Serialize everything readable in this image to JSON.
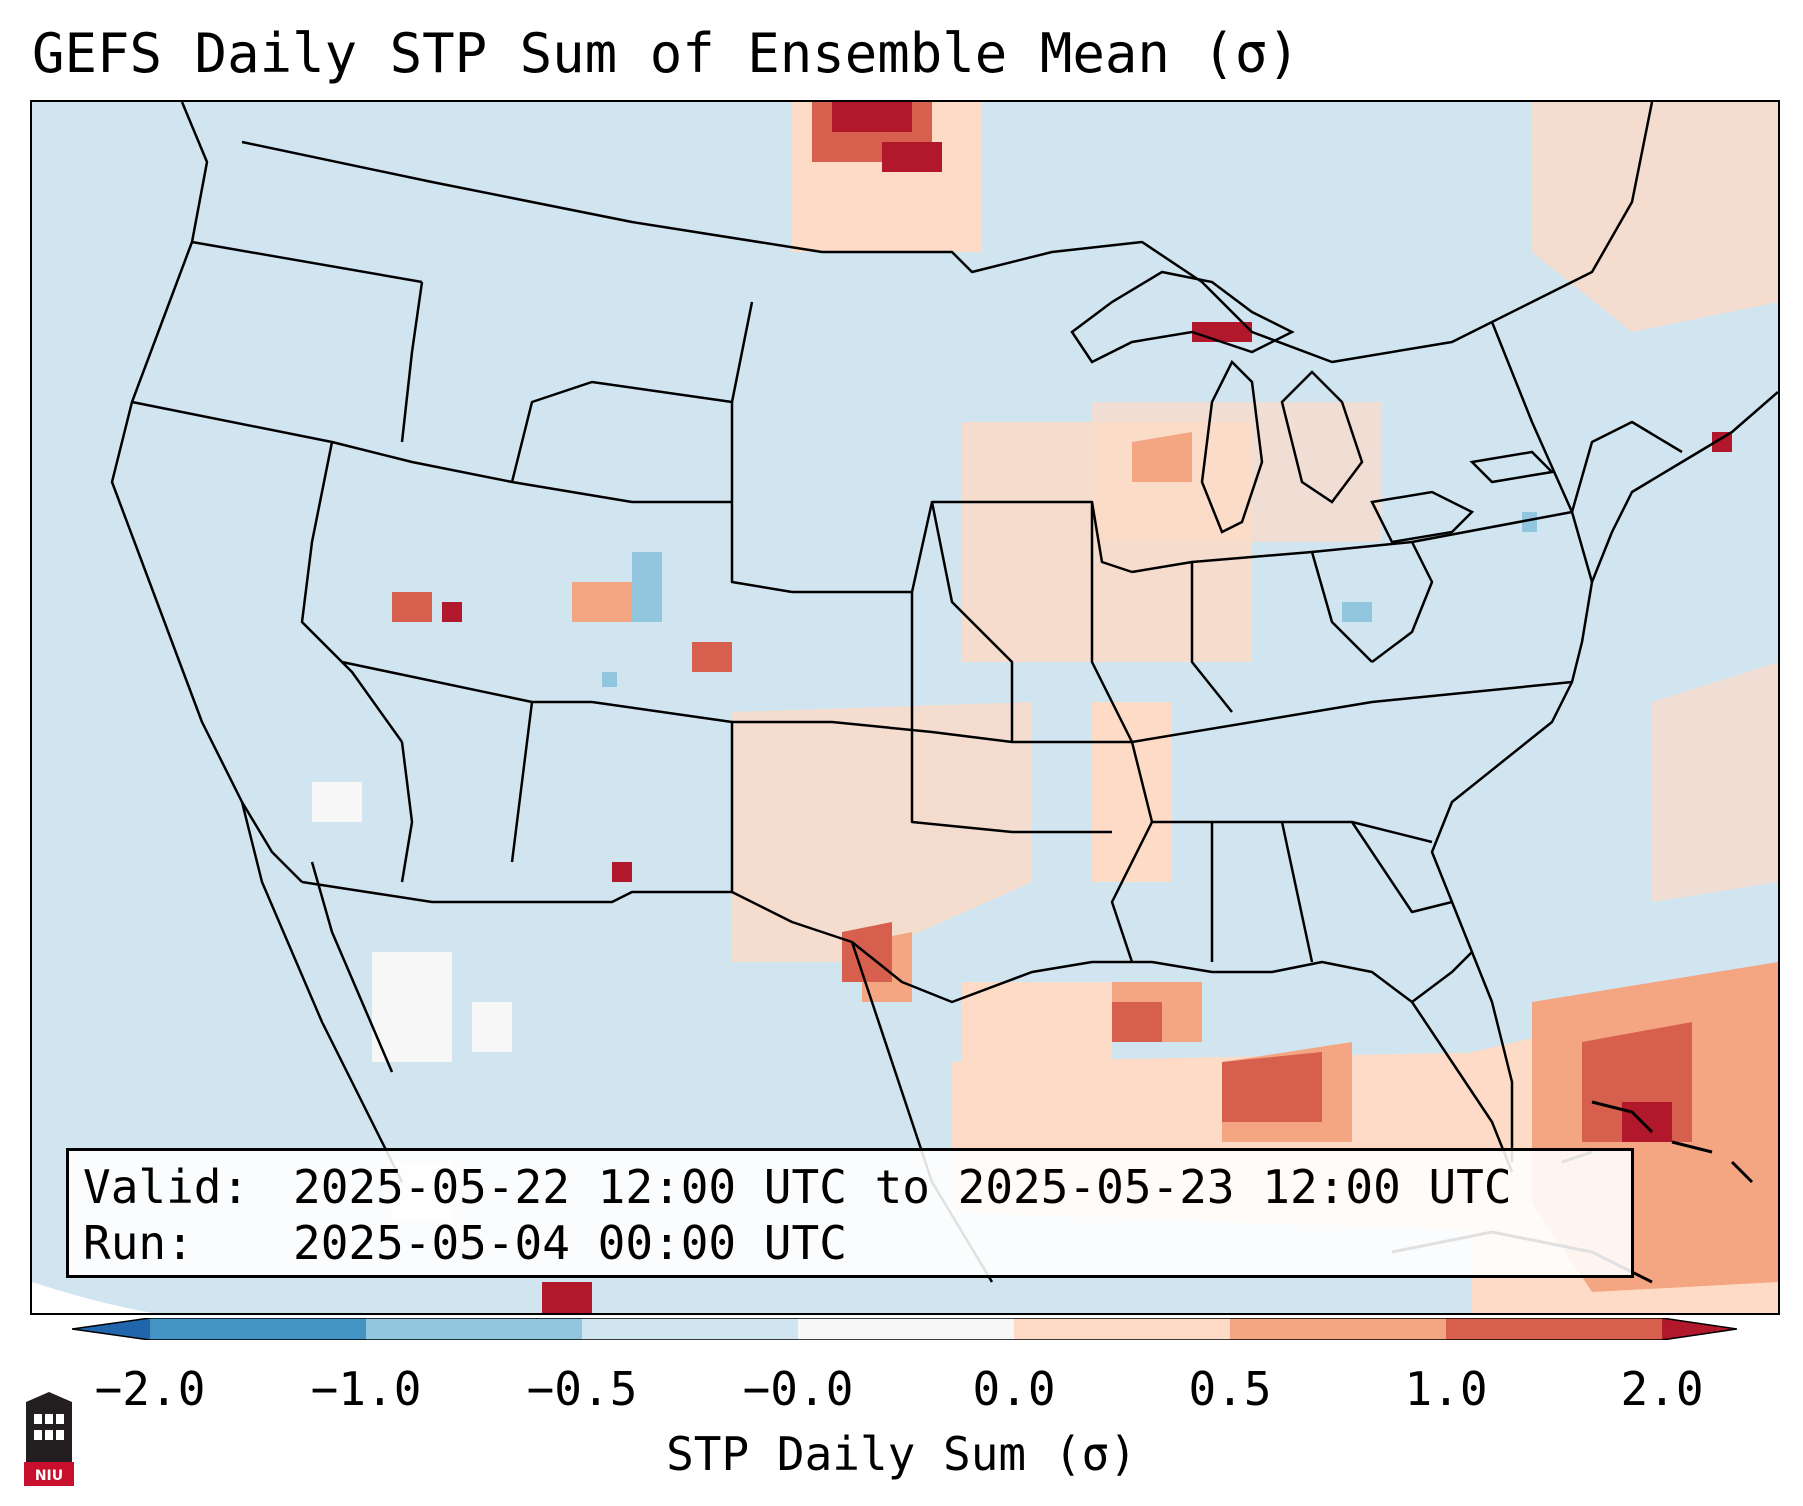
{
  "title": "GEFS Daily STP Sum of Ensemble Mean (σ)",
  "info": {
    "valid_label": "Valid:",
    "valid_value": "2025-05-22 12:00 UTC to 2025-05-23 12:00 UTC",
    "run_label": "Run:",
    "run_value": "2025-05-04 00:00 UTC"
  },
  "colorbar": {
    "label": "STP Daily Sum (σ)",
    "ticks": [
      "−2.0",
      "−1.0",
      "−0.5",
      "−0.0",
      "0.0",
      "0.5",
      "1.0",
      "2.0"
    ],
    "colors": {
      "below_min": "#2166ac",
      "bin_1": "#4393c3",
      "bin_2": "#92c5de",
      "bin_3": "#d1e5f0",
      "bin_4": "#f7f7f7",
      "bin_5": "#fddbc7",
      "bin_6": "#f4a582",
      "bin_7": "#d6604d",
      "above_max": "#b2182b"
    }
  },
  "map": {
    "background_color": "#d1e5f0",
    "border_color": "#000000"
  },
  "logo": {
    "text": "NIU",
    "icon": "niu-logo-icon"
  }
}
